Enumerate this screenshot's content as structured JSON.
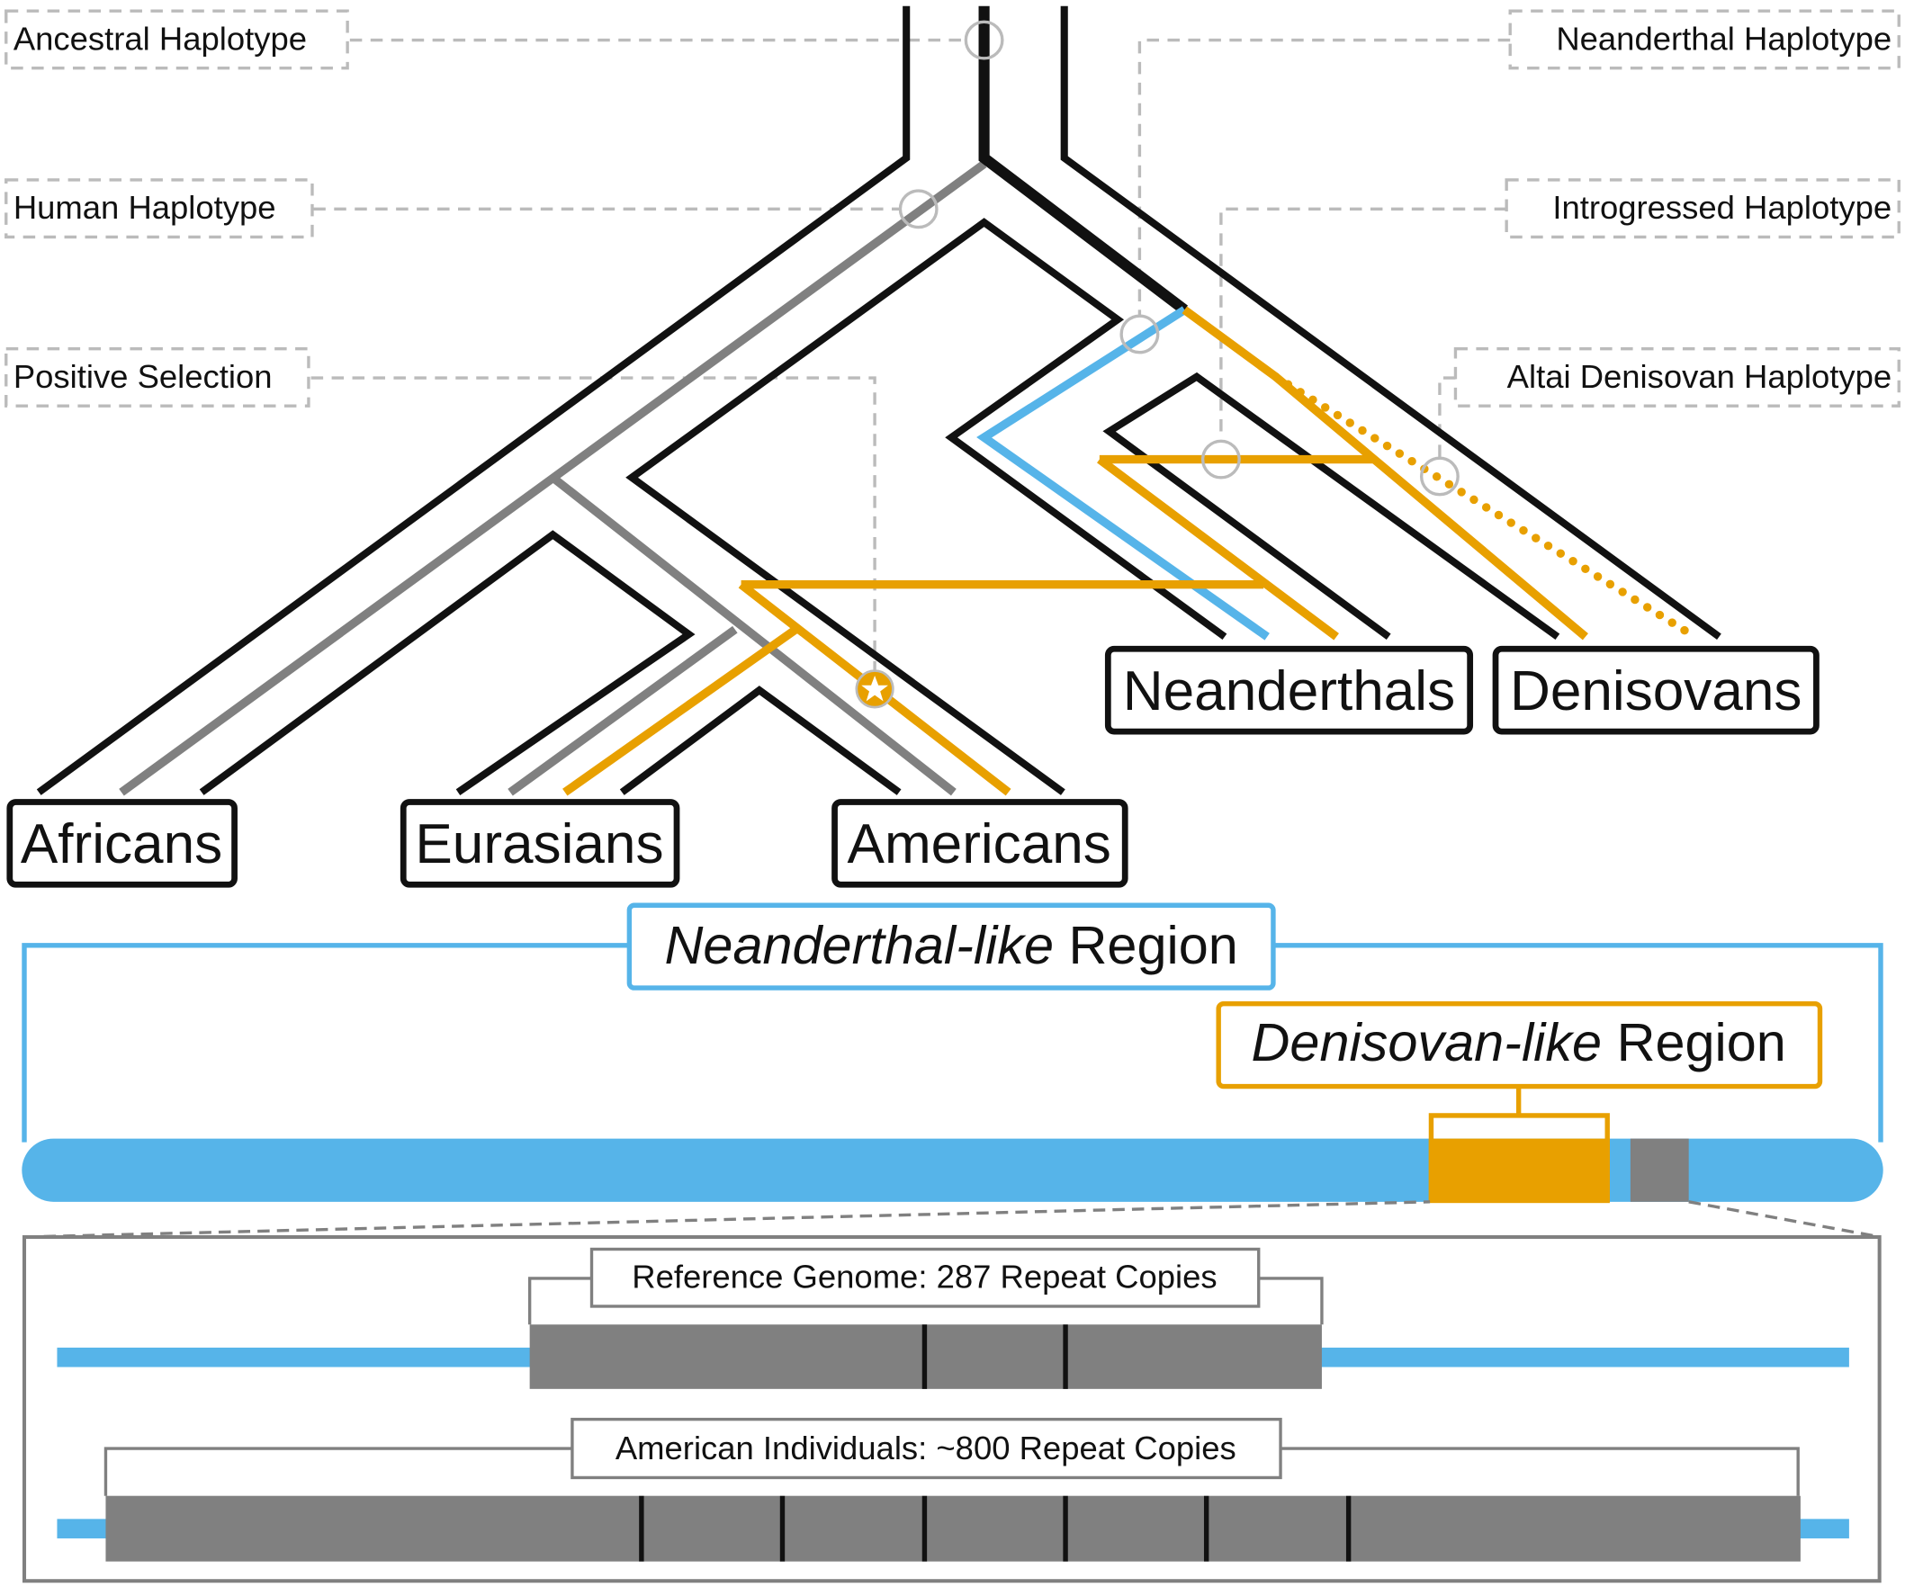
{
  "colors": {
    "black": "#111111",
    "gray": "#808080",
    "orange": "#e8a000",
    "blue": "#56b4e9",
    "callout": "#bbbbbb"
  },
  "legend": {
    "ancestral": "Ancestral Haplotype",
    "human": "Human Haplotype",
    "positive": "Positive Selection",
    "neanderthal": "Neanderthal Haplotype",
    "introgressed": "Introgressed Haplotype",
    "altai": "Altai Denisovan Haplotype"
  },
  "populations": {
    "africans": "Africans",
    "eurasians": "Eurasians",
    "americans": "Americans",
    "neanderthals": "Neanderthals",
    "denisovans": "Denisovans"
  },
  "regions": {
    "neanderthal_italic": "Neanderthal-like",
    "neanderthal_rest": " Region",
    "denisovan_italic": "Denisovan-like",
    "denisovan_rest": " Region"
  },
  "repeats": {
    "reference": "Reference Genome: 287 Repeat Copies",
    "american": "American Individuals: ~800 Repeat Copies"
  }
}
